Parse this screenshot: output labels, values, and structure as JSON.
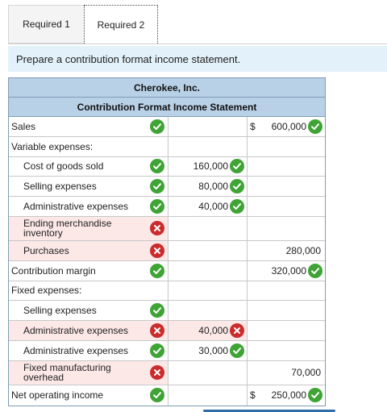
{
  "tabs": [
    {
      "label": "Required 1"
    },
    {
      "label": "Required 2"
    }
  ],
  "prompt": "Prepare a contribution format income statement.",
  "statement": {
    "company": "Cherokee, Inc.",
    "title": "Contribution Format Income Statement",
    "rows": [
      {
        "label": "Sales",
        "indent": false,
        "label_status": "ok",
        "mid": "",
        "mid_status": "",
        "dollar": "$",
        "right": "600,000",
        "right_status": "ok"
      },
      {
        "label": "Variable expenses:",
        "indent": false,
        "label_status": "",
        "mid": "",
        "mid_status": "",
        "dollar": "",
        "right": "",
        "right_status": ""
      },
      {
        "label": "Cost of goods sold",
        "indent": true,
        "label_status": "ok",
        "mid": "160,000",
        "mid_status": "ok",
        "dollar": "",
        "right": "",
        "right_status": ""
      },
      {
        "label": "Selling expenses",
        "indent": true,
        "label_status": "ok",
        "mid": "80,000",
        "mid_status": "ok",
        "dollar": "",
        "right": "",
        "right_status": ""
      },
      {
        "label": "Administrative expenses",
        "indent": true,
        "label_status": "ok",
        "mid": "40,000",
        "mid_status": "ok",
        "dollar": "",
        "right": "",
        "right_status": ""
      },
      {
        "label": "Ending merchandise inventory",
        "indent": true,
        "tall": true,
        "label_status": "no",
        "mid": "",
        "mid_status": "",
        "dollar": "",
        "right": "",
        "right_status": ""
      },
      {
        "label": "Purchases",
        "indent": true,
        "label_status": "no",
        "mid": "",
        "mid_status": "",
        "dollar": "",
        "right": "280,000",
        "right_status": ""
      },
      {
        "label": "Contribution margin",
        "indent": false,
        "label_status": "ok",
        "mid": "",
        "mid_status": "",
        "dollar": "",
        "right": "320,000",
        "right_status": "ok"
      },
      {
        "label": "Fixed expenses:",
        "indent": false,
        "label_status": "",
        "mid": "",
        "mid_status": "",
        "dollar": "",
        "right": "",
        "right_status": ""
      },
      {
        "label": "Selling expenses",
        "indent": true,
        "label_status": "ok",
        "mid": "",
        "mid_status": "",
        "dollar": "",
        "right": "",
        "right_status": ""
      },
      {
        "label": "Administrative expenses",
        "indent": true,
        "label_status": "no",
        "mid": "40,000",
        "mid_status": "no",
        "dollar": "",
        "right": "",
        "right_status": ""
      },
      {
        "label": "Administrative expenses",
        "indent": true,
        "label_status": "ok",
        "mid": "30,000",
        "mid_status": "ok",
        "dollar": "",
        "right": "",
        "right_status": ""
      },
      {
        "label": "Fixed manufacturing overhead",
        "indent": true,
        "tall": true,
        "label_status": "no",
        "mid": "",
        "mid_status": "",
        "dollar": "",
        "right": "70,000",
        "right_status": ""
      },
      {
        "label": "Net operating income",
        "indent": false,
        "label_status": "ok",
        "mid": "",
        "mid_status": "",
        "dollar": "$",
        "right": "250,000",
        "right_status": "ok"
      }
    ]
  },
  "colors": {
    "ok": "#3fa435",
    "no": "#cc2b2b",
    "header": "#b9d1e7",
    "prompt_bg": "#e3f1fa",
    "bad_bg": "#fde8e8"
  }
}
